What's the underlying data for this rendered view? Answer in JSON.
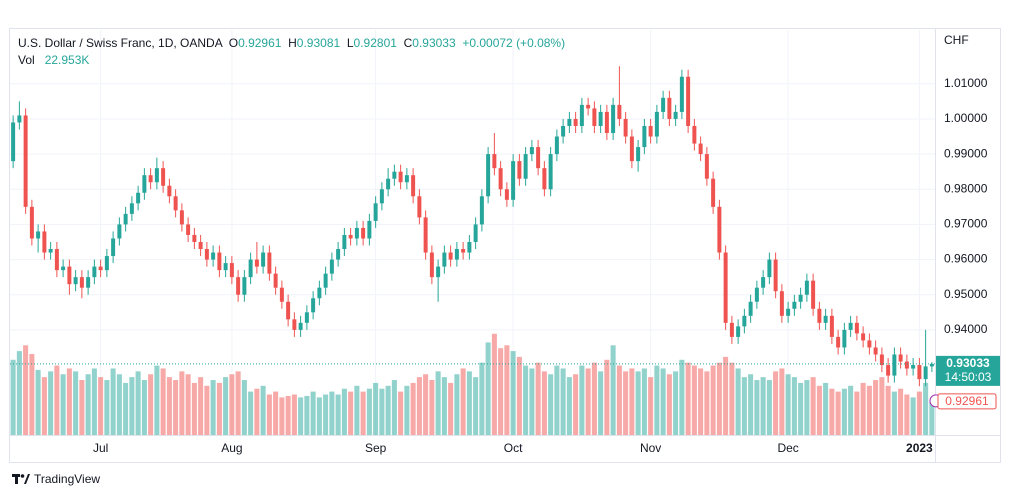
{
  "chart_data": {
    "type": "candlestick",
    "title": "U.S. Dollar / Swiss Franc, 1D, OANDA",
    "ohlc_labels": [
      "O",
      "H",
      "L",
      "C"
    ],
    "change": "+0.00072 (+0.08%)",
    "price_unit": "CHF",
    "countdown": "14:50:03",
    "up_color": "#26a69a",
    "down_color": "#ef5350",
    "grid": true,
    "categories": [
      null,
      null,
      null,
      null,
      null,
      null,
      null,
      null,
      null,
      null,
      null,
      null,
      null,
      null,
      "Jul",
      null,
      null,
      null,
      null,
      null,
      null,
      null,
      null,
      null,
      null,
      null,
      null,
      null,
      null,
      null,
      null,
      null,
      null,
      null,
      null,
      "Aug",
      null,
      null,
      null,
      null,
      null,
      null,
      null,
      null,
      null,
      null,
      null,
      null,
      null,
      null,
      null,
      null,
      null,
      null,
      null,
      null,
      null,
      null,
      "Sep",
      null,
      null,
      null,
      null,
      null,
      null,
      null,
      null,
      null,
      null,
      null,
      null,
      null,
      null,
      null,
      null,
      null,
      null,
      null,
      null,
      null,
      "Oct",
      null,
      null,
      null,
      null,
      null,
      null,
      null,
      null,
      null,
      null,
      null,
      null,
      null,
      null,
      null,
      null,
      null,
      null,
      null,
      null,
      null,
      "Nov",
      null,
      null,
      null,
      null,
      null,
      null,
      null,
      null,
      null,
      null,
      null,
      null,
      null,
      null,
      null,
      null,
      null,
      null,
      null,
      null,
      null,
      "Dec",
      null,
      null,
      null,
      null,
      null,
      null,
      null,
      null,
      null,
      null,
      null,
      null,
      null,
      null,
      null,
      null,
      null,
      null,
      null,
      null,
      "2023",
      null,
      null
    ],
    "open": [
      0.988,
      0.999,
      1.001,
      0.975,
      0.966,
      0.968,
      0.962,
      0.963,
      0.957,
      0.958,
      0.953,
      0.955,
      0.952,
      0.955,
      0.958,
      0.957,
      0.961,
      0.966,
      0.97,
      0.973,
      0.976,
      0.979,
      0.984,
      0.982,
      0.986,
      0.981,
      0.978,
      0.974,
      0.97,
      0.967,
      0.965,
      0.963,
      0.96,
      0.962,
      0.957,
      0.959,
      0.955,
      0.95,
      0.955,
      0.96,
      0.958,
      0.962,
      0.956,
      0.952,
      0.948,
      0.943,
      0.94,
      0.942,
      0.945,
      0.949,
      0.952,
      0.956,
      0.96,
      0.963,
      0.967,
      0.966,
      0.969,
      0.966,
      0.971,
      0.976,
      0.98,
      0.983,
      0.985,
      0.982,
      0.984,
      0.978,
      0.972,
      0.962,
      0.955,
      0.958,
      0.962,
      0.96,
      0.963,
      0.962,
      0.965,
      0.97,
      0.978,
      0.99,
      0.986,
      0.98,
      0.977,
      0.988,
      0.983,
      0.99,
      0.992,
      0.986,
      0.98,
      0.99,
      0.995,
      0.998,
      1.0,
      0.998,
      1.004,
      1.003,
      0.998,
      1.002,
      0.996,
      1.004,
      1.0,
      0.995,
      0.988,
      0.992,
      0.998,
      0.995,
      1.002,
      1.006,
      1.0,
      1.002,
      1.012,
      0.998,
      0.993,
      0.99,
      0.983,
      0.975,
      0.962,
      0.942,
      0.938,
      0.941,
      0.944,
      0.948,
      0.952,
      0.955,
      0.96,
      0.951,
      0.944,
      0.946,
      0.948,
      0.95,
      0.954,
      0.946,
      0.942,
      0.944,
      0.938,
      0.935,
      0.94,
      0.942,
      0.939,
      0.937,
      0.935,
      0.933,
      0.93,
      0.927,
      0.933,
      0.931,
      0.929,
      0.93,
      0.926,
      0.92961
    ],
    "high": [
      1.001,
      1.005,
      1.003,
      0.977,
      0.97,
      0.97,
      0.965,
      0.965,
      0.96,
      0.96,
      0.957,
      0.957,
      0.957,
      0.96,
      0.96,
      0.963,
      0.968,
      0.972,
      0.975,
      0.978,
      0.981,
      0.986,
      0.986,
      0.989,
      0.988,
      0.983,
      0.98,
      0.976,
      0.972,
      0.969,
      0.967,
      0.965,
      0.964,
      0.964,
      0.961,
      0.961,
      0.957,
      0.957,
      0.962,
      0.965,
      0.964,
      0.964,
      0.958,
      0.954,
      0.95,
      0.945,
      0.944,
      0.947,
      0.951,
      0.954,
      0.958,
      0.962,
      0.965,
      0.969,
      0.969,
      0.971,
      0.971,
      0.973,
      0.978,
      0.982,
      0.986,
      0.987,
      0.987,
      0.986,
      0.986,
      0.98,
      0.974,
      0.964,
      0.96,
      0.964,
      0.964,
      0.965,
      0.965,
      0.967,
      0.972,
      0.98,
      0.992,
      0.996,
      0.988,
      0.982,
      0.99,
      0.99,
      0.992,
      0.994,
      0.994,
      0.988,
      0.992,
      0.997,
      1.0,
      1.002,
      1.002,
      1.006,
      1.006,
      1.005,
      1.004,
      1.004,
      1.006,
      1.015,
      1.002,
      0.997,
      0.994,
      1.0,
      1.0,
      1.004,
      1.008,
      1.008,
      1.004,
      1.014,
      1.014,
      1.0,
      0.995,
      0.992,
      0.985,
      0.977,
      0.964,
      0.944,
      0.943,
      0.946,
      0.95,
      0.954,
      0.957,
      0.962,
      0.962,
      0.953,
      0.948,
      0.95,
      0.952,
      0.956,
      0.956,
      0.948,
      0.946,
      0.946,
      0.94,
      0.942,
      0.944,
      0.944,
      0.941,
      0.939,
      0.937,
      0.935,
      0.932,
      0.935,
      0.935,
      0.933,
      0.932,
      0.932,
      0.94,
      0.93081
    ],
    "low": [
      0.986,
      0.997,
      0.973,
      0.964,
      0.962,
      0.96,
      0.96,
      0.955,
      0.955,
      0.95,
      0.951,
      0.949,
      0.95,
      0.953,
      0.955,
      0.955,
      0.959,
      0.964,
      0.968,
      0.971,
      0.974,
      0.977,
      0.98,
      0.98,
      0.979,
      0.976,
      0.972,
      0.968,
      0.965,
      0.963,
      0.961,
      0.958,
      0.958,
      0.955,
      0.955,
      0.953,
      0.948,
      0.948,
      0.953,
      0.956,
      0.956,
      0.954,
      0.95,
      0.946,
      0.941,
      0.938,
      0.938,
      0.94,
      0.943,
      0.947,
      0.95,
      0.954,
      0.958,
      0.961,
      0.964,
      0.964,
      0.964,
      0.964,
      0.969,
      0.974,
      0.978,
      0.981,
      0.98,
      0.98,
      0.976,
      0.97,
      0.96,
      0.953,
      0.948,
      0.956,
      0.958,
      0.958,
      0.96,
      0.96,
      0.963,
      0.968,
      0.976,
      0.984,
      0.978,
      0.975,
      0.975,
      0.981,
      0.981,
      0.988,
      0.984,
      0.978,
      0.978,
      0.988,
      0.993,
      0.996,
      0.996,
      0.996,
      1.001,
      0.996,
      0.996,
      0.994,
      0.994,
      0.998,
      0.993,
      0.986,
      0.985,
      0.99,
      0.993,
      0.993,
      1.0,
      0.998,
      0.998,
      1.0,
      0.996,
      0.991,
      0.988,
      0.981,
      0.973,
      0.96,
      0.94,
      0.936,
      0.936,
      0.939,
      0.942,
      0.946,
      0.95,
      0.953,
      0.949,
      0.942,
      0.942,
      0.944,
      0.946,
      0.948,
      0.944,
      0.94,
      0.94,
      0.936,
      0.933,
      0.933,
      0.938,
      0.937,
      0.935,
      0.933,
      0.931,
      0.928,
      0.925,
      0.925,
      0.929,
      0.927,
      0.927,
      0.924,
      0.924,
      0.92801
    ],
    "close": [
      0.999,
      1.001,
      0.975,
      0.966,
      0.968,
      0.962,
      0.963,
      0.957,
      0.958,
      0.953,
      0.955,
      0.952,
      0.955,
      0.958,
      0.957,
      0.961,
      0.966,
      0.97,
      0.973,
      0.976,
      0.979,
      0.984,
      0.982,
      0.986,
      0.981,
      0.978,
      0.974,
      0.97,
      0.967,
      0.965,
      0.963,
      0.96,
      0.962,
      0.957,
      0.959,
      0.955,
      0.95,
      0.955,
      0.96,
      0.958,
      0.962,
      0.956,
      0.952,
      0.948,
      0.943,
      0.94,
      0.942,
      0.945,
      0.949,
      0.952,
      0.956,
      0.96,
      0.963,
      0.967,
      0.966,
      0.969,
      0.966,
      0.971,
      0.976,
      0.98,
      0.983,
      0.985,
      0.982,
      0.984,
      0.978,
      0.972,
      0.962,
      0.955,
      0.958,
      0.962,
      0.96,
      0.963,
      0.962,
      0.965,
      0.97,
      0.978,
      0.99,
      0.986,
      0.98,
      0.977,
      0.988,
      0.983,
      0.99,
      0.992,
      0.986,
      0.98,
      0.99,
      0.995,
      0.998,
      1.0,
      0.998,
      1.004,
      1.003,
      0.998,
      1.002,
      0.996,
      1.004,
      1.0,
      0.995,
      0.988,
      0.992,
      0.998,
      0.995,
      1.002,
      1.006,
      1.0,
      1.002,
      1.012,
      0.998,
      0.993,
      0.99,
      0.983,
      0.975,
      0.962,
      0.942,
      0.938,
      0.941,
      0.944,
      0.948,
      0.952,
      0.955,
      0.96,
      0.951,
      0.944,
      0.946,
      0.948,
      0.95,
      0.954,
      0.946,
      0.942,
      0.944,
      0.938,
      0.935,
      0.94,
      0.942,
      0.939,
      0.937,
      0.935,
      0.933,
      0.93,
      0.927,
      0.933,
      0.931,
      0.929,
      0.93,
      0.926,
      0.92961,
      0.93033
    ],
    "ylim": [
      0.9101,
      1.0253
    ],
    "yticks": [
      {
        "value": 0.94,
        "label": "0.94000"
      },
      {
        "value": 0.95,
        "label": "0.95000"
      },
      {
        "value": 0.96,
        "label": "0.96000"
      },
      {
        "value": 0.97,
        "label": "0.97000"
      },
      {
        "value": 0.98,
        "label": "0.98000"
      },
      {
        "value": 0.99,
        "label": "0.99000"
      },
      {
        "value": 1.0,
        "label": "1.00000"
      },
      {
        "value": 1.01,
        "label": "1.01000"
      }
    ],
    "volume": {
      "name": "Vol",
      "last_label": "22.953K",
      "values": [
        52000,
        58000,
        62000,
        56000,
        45000,
        40000,
        44000,
        48000,
        42000,
        46000,
        44000,
        38000,
        42000,
        46000,
        40000,
        38000,
        46000,
        42000,
        36000,
        40000,
        44000,
        38000,
        42000,
        48000,
        46000,
        40000,
        38000,
        44000,
        42000,
        36000,
        40000,
        34000,
        38000,
        36000,
        40000,
        42000,
        44000,
        38000,
        30000,
        32000,
        34000,
        28000,
        30000,
        26000,
        27000,
        28000,
        26000,
        27000,
        30000,
        26000,
        28000,
        30000,
        28000,
        32000,
        30000,
        34000,
        30000,
        32000,
        36000,
        32000,
        34000,
        38000,
        30000,
        34000,
        36000,
        40000,
        42000,
        38000,
        44000,
        40000,
        36000,
        42000,
        46000,
        44000,
        40000,
        50000,
        64000,
        70000,
        60000,
        62000,
        58000,
        54000,
        48000,
        46000,
        50000,
        44000,
        42000,
        48000,
        46000,
        40000,
        42000,
        48000,
        46000,
        50000,
        44000,
        52000,
        62000,
        48000,
        44000,
        46000,
        44000,
        46000,
        40000,
        48000,
        46000,
        42000,
        44000,
        52000,
        50000,
        48000,
        46000,
        44000,
        48000,
        50000,
        54000,
        50000,
        46000,
        40000,
        42000,
        38000,
        40000,
        38000,
        44000,
        46000,
        42000,
        40000,
        36000,
        38000,
        40000,
        34000,
        36000,
        32000,
        30000,
        32000,
        34000,
        30000,
        36000,
        34000,
        38000,
        40000,
        34000,
        30000,
        32000,
        28000,
        26000,
        30000,
        36000,
        22953
      ]
    },
    "y2lim": [
      0,
      280000
    ]
  },
  "footer": {
    "brand": "TradingView"
  }
}
